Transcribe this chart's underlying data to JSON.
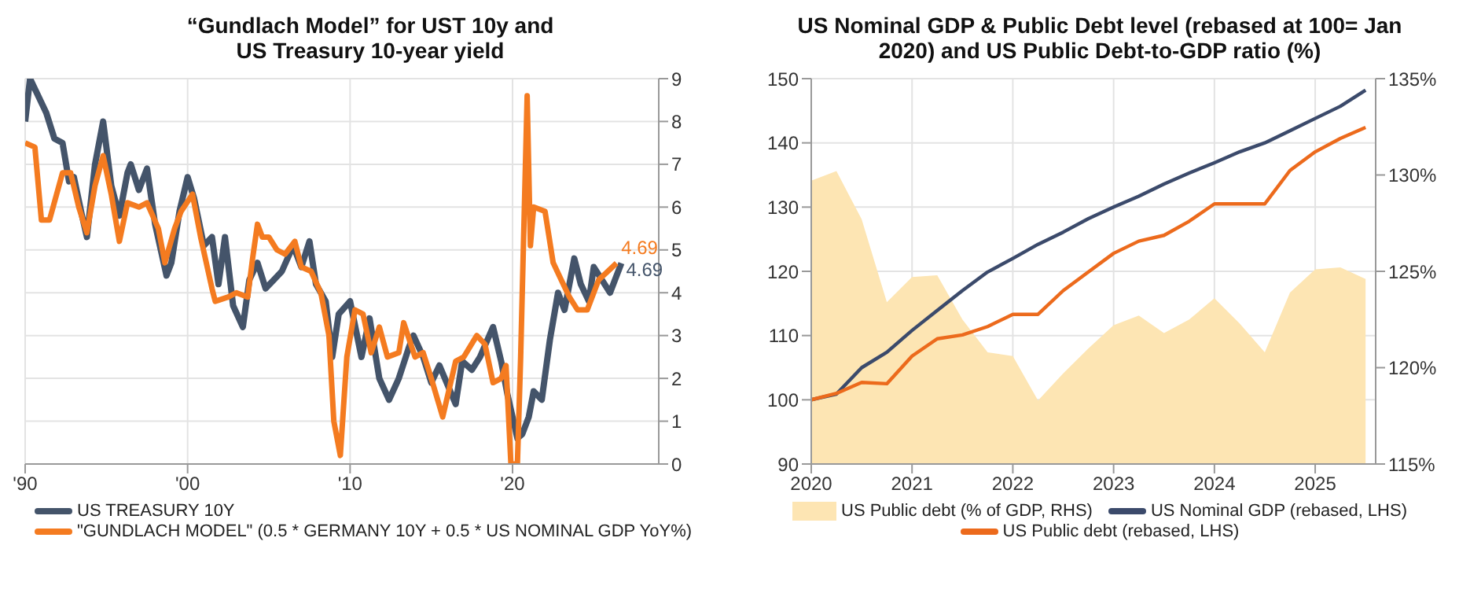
{
  "chart_data": [
    {
      "type": "line",
      "title": "“Gundlach Model” for UST 10y and US Treasury 10-year yield",
      "xlim": [
        1990,
        2029
      ],
      "xticks": [
        {
          "value": 1990,
          "label": "'90"
        },
        {
          "value": 2000,
          "label": "'00"
        },
        {
          "value": 2010,
          "label": "'10"
        },
        {
          "value": 2020,
          "label": "'20"
        }
      ],
      "ylim": [
        0,
        9
      ],
      "yticks": [
        0,
        1,
        2,
        3,
        4,
        5,
        6,
        7,
        8,
        9
      ],
      "grid": true,
      "legend": "bottom left",
      "series": [
        {
          "name": "US TREASURY  10Y",
          "color": "#44546a",
          "x": [
            1990.0,
            1990.3,
            1990.8,
            1991.3,
            1991.8,
            1992.3,
            1992.7,
            1993.0,
            1993.5,
            1993.8,
            1994.3,
            1994.8,
            1995.3,
            1995.8,
            1996.3,
            1996.5,
            1997.0,
            1997.5,
            1998.0,
            1998.7,
            1999.0,
            1999.5,
            2000.0,
            2000.4,
            2001.0,
            2001.5,
            2001.9,
            2002.3,
            2002.8,
            2003.4,
            2003.8,
            2004.3,
            2004.8,
            2005.3,
            2005.8,
            2006.5,
            2007.0,
            2007.5,
            2007.9,
            2008.5,
            2008.9,
            2009.3,
            2010.0,
            2010.7,
            2011.2,
            2011.8,
            2012.4,
            2013.0,
            2013.6,
            2013.9,
            2014.5,
            2015.0,
            2015.5,
            2016.5,
            2016.9,
            2017.5,
            2018.0,
            2018.8,
            2019.3,
            2019.7,
            2020.3,
            2020.6,
            2021.0,
            2021.3,
            2021.8,
            2022.3,
            2022.8,
            2023.2,
            2023.8,
            2024.2,
            2024.7,
            2025.0,
            2025.5,
            2026.0,
            2026.7
          ],
          "values": [
            8.0,
            9.0,
            8.6,
            8.2,
            7.6,
            7.5,
            6.6,
            6.7,
            5.8,
            5.3,
            7.0,
            8.0,
            6.5,
            5.8,
            6.8,
            7.0,
            6.4,
            6.9,
            5.6,
            4.4,
            4.7,
            5.9,
            6.7,
            6.2,
            5.1,
            5.3,
            4.2,
            5.3,
            3.7,
            3.2,
            4.3,
            4.7,
            4.1,
            4.3,
            4.5,
            5.1,
            4.6,
            5.2,
            4.2,
            3.8,
            2.5,
            3.5,
            3.8,
            2.5,
            3.4,
            2.0,
            1.5,
            2.0,
            2.7,
            3.0,
            2.5,
            1.9,
            2.3,
            1.4,
            2.4,
            2.2,
            2.5,
            3.2,
            2.4,
            1.6,
            0.6,
            0.7,
            1.1,
            1.7,
            1.5,
            2.9,
            4.0,
            3.6,
            4.8,
            4.2,
            3.8,
            4.6,
            4.3,
            4.0,
            4.69
          ],
          "value_labels": [
            null,
            null,
            null,
            null,
            null,
            null,
            null,
            null,
            null,
            null,
            null,
            null,
            null,
            null,
            null,
            null,
            null,
            null,
            null,
            null,
            null,
            null,
            null,
            null,
            null,
            null,
            null,
            null,
            null,
            null,
            null,
            null,
            null,
            null,
            null,
            null,
            null,
            null,
            null,
            null,
            null,
            null,
            null,
            null,
            null,
            null,
            null,
            null,
            null,
            null,
            null,
            null,
            null,
            null,
            null,
            null,
            null,
            null,
            null,
            null,
            null,
            null,
            null,
            null,
            null,
            null,
            null,
            null,
            null,
            null,
            null,
            null,
            null,
            null,
            "4.69"
          ]
        },
        {
          "name": "\"GUNDLACH MODEL\" (0.5 * GERMANY  10Y + 0.5 * US NOMINAL GDP YoY%)",
          "color": "#f47b20",
          "x": [
            1990.0,
            1990.6,
            1991.0,
            1991.5,
            1992.3,
            1992.8,
            1993.3,
            1993.8,
            1994.3,
            1994.8,
            1995.3,
            1995.8,
            1996.3,
            1997.0,
            1997.5,
            1998.2,
            1998.6,
            1999.2,
            1999.6,
            2000.3,
            2000.8,
            2001.5,
            2001.7,
            2002.5,
            2003.0,
            2003.7,
            2004.0,
            2004.3,
            2004.6,
            2005.0,
            2005.5,
            2006.0,
            2006.6,
            2007.0,
            2007.6,
            2008.2,
            2008.7,
            2009.0,
            2009.4,
            2009.8,
            2010.3,
            2010.8,
            2011.3,
            2011.8,
            2012.3,
            2013.0,
            2013.3,
            2014.0,
            2014.5,
            2015.0,
            2015.7,
            2016.5,
            2017.0,
            2017.8,
            2018.3,
            2018.8,
            2019.3,
            2019.6,
            2019.9,
            2020.3,
            2020.5,
            2020.9,
            2021.1,
            2021.3,
            2022.0,
            2022.5,
            2023.0,
            2023.5,
            2024.0,
            2024.6,
            2025.3,
            2026.4
          ],
          "values": [
            7.5,
            7.4,
            5.7,
            5.7,
            6.8,
            6.8,
            6.0,
            5.4,
            6.5,
            7.2,
            6.3,
            5.2,
            6.1,
            6.0,
            6.1,
            5.5,
            4.7,
            5.5,
            5.9,
            6.3,
            5.3,
            4.1,
            3.8,
            3.9,
            4.0,
            3.9,
            4.8,
            5.6,
            5.3,
            5.3,
            5.0,
            4.9,
            5.2,
            4.6,
            4.5,
            4.0,
            3.0,
            1.0,
            0.2,
            2.5,
            3.6,
            3.5,
            2.6,
            3.2,
            2.5,
            2.6,
            3.3,
            2.5,
            2.6,
            2.0,
            1.1,
            2.4,
            2.5,
            3.0,
            2.8,
            1.9,
            2.0,
            2.3,
            0.0,
            0.0,
            2.5,
            8.6,
            5.1,
            6.0,
            5.9,
            4.7,
            4.3,
            3.9,
            3.6,
            3.6,
            4.3,
            4.69
          ],
          "value_labels": [
            null,
            null,
            null,
            null,
            null,
            null,
            null,
            null,
            null,
            null,
            null,
            null,
            null,
            null,
            null,
            null,
            null,
            null,
            null,
            null,
            null,
            null,
            null,
            null,
            null,
            null,
            null,
            null,
            null,
            null,
            null,
            null,
            null,
            null,
            null,
            null,
            null,
            null,
            null,
            null,
            null,
            null,
            null,
            null,
            null,
            null,
            null,
            null,
            null,
            null,
            null,
            null,
            null,
            null,
            null,
            null,
            null,
            null,
            null,
            null,
            null,
            null,
            null,
            null,
            null,
            null,
            null,
            null,
            null,
            null,
            null,
            "4.69"
          ]
        }
      ]
    },
    {
      "type": "line",
      "title": "US Nominal GDP & Public Debt level (rebased at 100= Jan 2020) and US Public Debt-to-GDP ratio (%)",
      "x": [
        2020.0,
        2020.25,
        2020.5,
        2020.75,
        2021.0,
        2021.25,
        2021.5,
        2021.75,
        2022.0,
        2022.25,
        2022.5,
        2022.75,
        2023.0,
        2023.25,
        2023.5,
        2023.75,
        2024.0,
        2024.25,
        2024.5,
        2024.75,
        2025.0,
        2025.25,
        2025.5
      ],
      "xlim": [
        2020,
        2025.6
      ],
      "xticks": [
        2020,
        2021,
        2022,
        2023,
        2024,
        2025
      ],
      "ylim": [
        90,
        150
      ],
      "yticks": [
        90,
        100,
        110,
        120,
        130,
        140,
        150
      ],
      "y2lim": [
        115,
        135
      ],
      "y2ticks": [
        {
          "value": 115,
          "label": "115%"
        },
        {
          "value": 120,
          "label": "120%"
        },
        {
          "value": 125,
          "label": "125%"
        },
        {
          "value": 130,
          "label": "130%"
        },
        {
          "value": 135,
          "label": "135%"
        }
      ],
      "grid": true,
      "legend": "bottom",
      "series": [
        {
          "name": "US Public debt (% of GDP, RHS)",
          "type": "area",
          "axis": "y2",
          "color": "#fde5b3",
          "values": [
            129.7,
            130.2,
            127.7,
            123.4,
            124.7,
            124.8,
            122.5,
            120.8,
            120.6,
            118.3,
            119.7,
            121.0,
            122.2,
            122.7,
            121.8,
            122.5,
            123.6,
            122.3,
            120.8,
            123.9,
            125.1,
            125.2,
            124.6
          ]
        },
        {
          "name": "US Nominal GDP (rebased, LHS)",
          "color": "#3b4a6b",
          "values": [
            100,
            100.9,
            105.0,
            107.4,
            110.8,
            113.9,
            117.0,
            119.9,
            122.0,
            124.2,
            126.1,
            128.2,
            130.0,
            131.7,
            133.6,
            135.3,
            136.9,
            138.6,
            140.0,
            141.9,
            143.8,
            145.7,
            148.2
          ]
        },
        {
          "name": "US Public debt (rebased, LHS)",
          "color": "#ec6a1c",
          "values": [
            100,
            101.0,
            102.7,
            102.5,
            106.8,
            109.5,
            110.1,
            111.4,
            113.3,
            113.3,
            117.0,
            119.9,
            122.8,
            124.7,
            125.6,
            127.8,
            130.5,
            130.5,
            130.5,
            135.7,
            138.6,
            140.7,
            142.4
          ]
        }
      ]
    }
  ]
}
